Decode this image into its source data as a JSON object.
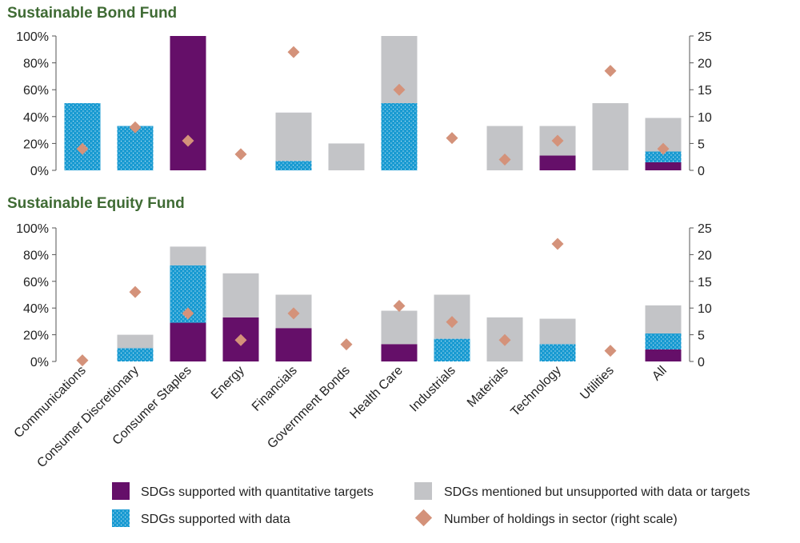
{
  "colors": {
    "quant": "#650f69",
    "data": "#1a9bd2",
    "mentioned": "#c3c4c7",
    "holdings": "#d4927a",
    "title": "#3f6b34"
  },
  "categories": [
    "Communications",
    "Consumer Discretionary",
    "Consumer Staples",
    "Energy",
    "Financials",
    "Government Bonds",
    "Health Care",
    "Industrials",
    "Materials",
    "Technology",
    "Utilities",
    "All"
  ],
  "legend": {
    "quant": "SDGs supported with quantitative targets",
    "data": "SDGs supported with data",
    "mentioned": "SDGs mentioned but unsupported with data or targets",
    "holdings": "Number of holdings in sector (right scale)"
  },
  "chart_data": [
    {
      "type": "bar",
      "stacked": true,
      "title": "Sustainable Bond Fund",
      "left_axis": {
        "ylim": [
          0,
          100
        ],
        "ticks": [
          "0%",
          "20%",
          "40%",
          "60%",
          "80%",
          "100%"
        ]
      },
      "right_axis": {
        "ylim": [
          0,
          25
        ],
        "ticks": [
          "0",
          "5",
          "10",
          "15",
          "20",
          "25"
        ]
      },
      "series": [
        {
          "name": "SDGs supported with quantitative targets",
          "values": [
            0,
            0,
            100,
            0,
            0,
            0,
            0,
            0,
            0,
            11,
            0,
            6
          ]
        },
        {
          "name": "SDGs supported with data",
          "values": [
            50,
            33,
            0,
            0,
            7,
            0,
            50,
            0,
            0,
            0,
            0,
            8
          ]
        },
        {
          "name": "SDGs mentioned but unsupported with data or targets",
          "values": [
            0,
            0,
            0,
            0,
            36,
            20,
            50,
            0,
            33,
            22,
            50,
            25
          ]
        }
      ],
      "holdings": [
        4,
        8,
        5.5,
        3,
        22,
        null,
        15,
        6,
        2,
        5.5,
        18.5,
        4
      ]
    },
    {
      "type": "bar",
      "stacked": true,
      "title": "Sustainable Equity Fund",
      "left_axis": {
        "ylim": [
          0,
          100
        ],
        "ticks": [
          "0%",
          "20%",
          "40%",
          "60%",
          "80%",
          "100%"
        ]
      },
      "right_axis": {
        "ylim": [
          0,
          25
        ],
        "ticks": [
          "0",
          "5",
          "10",
          "15",
          "20",
          "25"
        ]
      },
      "series": [
        {
          "name": "SDGs supported with quantitative targets",
          "values": [
            0,
            0,
            29,
            33,
            25,
            0,
            13,
            0,
            0,
            0,
            0,
            9
          ]
        },
        {
          "name": "SDGs supported with data",
          "values": [
            0,
            10,
            43,
            0,
            0,
            0,
            0,
            17,
            0,
            13,
            0,
            12
          ]
        },
        {
          "name": "SDGs mentioned but unsupported with data or targets",
          "values": [
            0,
            10,
            14,
            33,
            25,
            0,
            25,
            33,
            33,
            19,
            0,
            21
          ]
        }
      ],
      "holdings": [
        0.2,
        13,
        9,
        4,
        9,
        3.2,
        10.4,
        7.4,
        4,
        22,
        2,
        null
      ]
    }
  ]
}
